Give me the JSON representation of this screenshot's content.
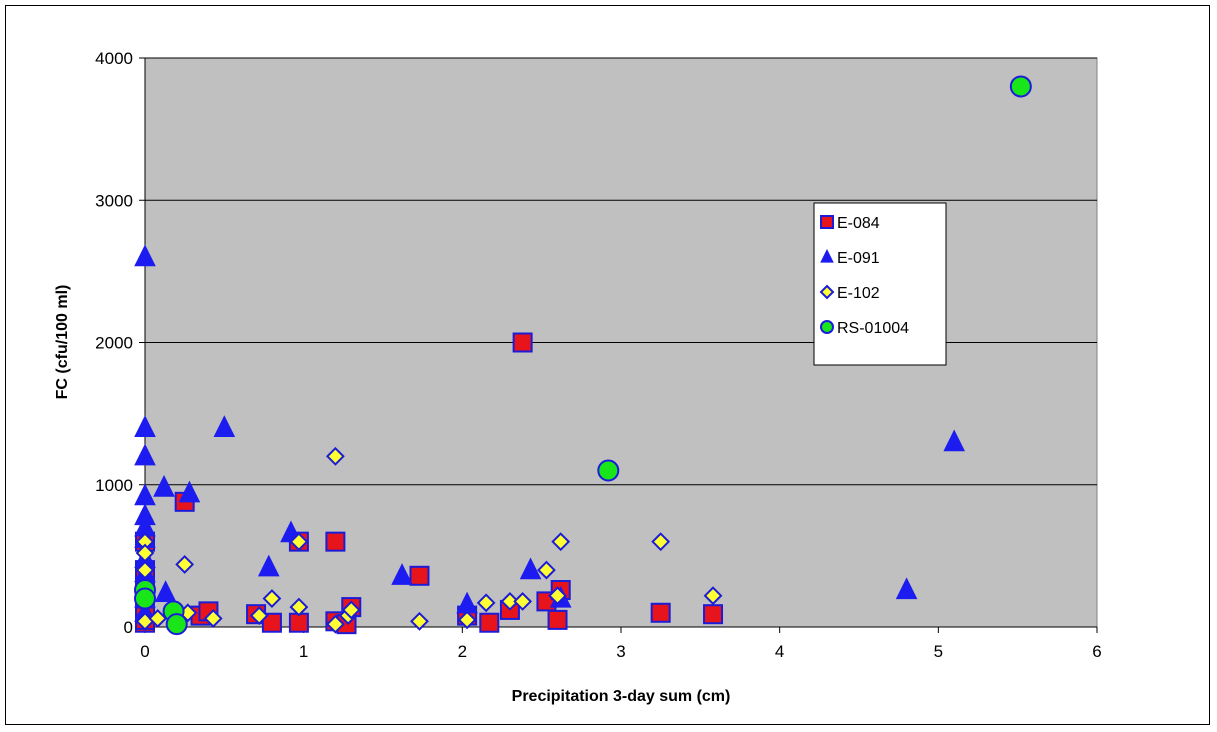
{
  "chart_data": {
    "type": "scatter",
    "title": "",
    "xlabel": "Precipitation 3-day sum (cm)",
    "ylabel": "FC (cfu/100 ml)",
    "xlim": [
      0,
      6
    ],
    "ylim": [
      0,
      4000
    ],
    "x_ticks": [
      "0",
      "1",
      "2",
      "3",
      "4",
      "5",
      "6"
    ],
    "y_ticks": [
      "0",
      "1000",
      "2000",
      "3000",
      "4000"
    ],
    "grid": "horizontal",
    "plot_background": "#c0c0c0",
    "legend_position": "right-upper",
    "series": [
      {
        "name": "E-084",
        "marker": "square",
        "color": "#e8141c",
        "stroke": "#1c1cd8",
        "points": [
          [
            0,
            30
          ],
          [
            0,
            50
          ],
          [
            0,
            100
          ],
          [
            0,
            150
          ],
          [
            0,
            200
          ],
          [
            0,
            250
          ],
          [
            0,
            300
          ],
          [
            0,
            400
          ],
          [
            0,
            600
          ],
          [
            0.25,
            880
          ],
          [
            0.35,
            80
          ],
          [
            0.4,
            110
          ],
          [
            0.7,
            90
          ],
          [
            0.8,
            30
          ],
          [
            0.97,
            600
          ],
          [
            0.97,
            30
          ],
          [
            1.2,
            600
          ],
          [
            1.2,
            40
          ],
          [
            1.27,
            20
          ],
          [
            1.3,
            140
          ],
          [
            1.73,
            360
          ],
          [
            2.03,
            80
          ],
          [
            2.17,
            30
          ],
          [
            2.3,
            120
          ],
          [
            2.38,
            2000
          ],
          [
            2.53,
            180
          ],
          [
            2.6,
            50
          ],
          [
            2.62,
            260
          ],
          [
            3.25,
            100
          ],
          [
            3.58,
            90
          ]
        ]
      },
      {
        "name": "E-091",
        "marker": "triangle",
        "color": "#1c1cf0",
        "stroke": "#1c1cf0",
        "points": [
          [
            0,
            2600
          ],
          [
            0,
            1400
          ],
          [
            0,
            1200
          ],
          [
            0,
            920
          ],
          [
            0,
            780
          ],
          [
            0,
            700
          ],
          [
            0,
            620
          ],
          [
            0,
            480
          ],
          [
            0,
            380
          ],
          [
            0,
            300
          ],
          [
            0,
            200
          ],
          [
            0,
            100
          ],
          [
            0.12,
            980
          ],
          [
            0.13,
            240
          ],
          [
            0.28,
            940
          ],
          [
            0.5,
            1400
          ],
          [
            0.78,
            420
          ],
          [
            0.92,
            660
          ],
          [
            1.62,
            360
          ],
          [
            2.03,
            160
          ],
          [
            2.43,
            400
          ],
          [
            2.62,
            200
          ],
          [
            4.8,
            260
          ],
          [
            5.1,
            1300
          ]
        ]
      },
      {
        "name": "E-102",
        "marker": "diamond",
        "color": "#ffff33",
        "stroke": "#1c1cd8",
        "points": [
          [
            0,
            600
          ],
          [
            0,
            520
          ],
          [
            0,
            400
          ],
          [
            0,
            40
          ],
          [
            0.08,
            60
          ],
          [
            0.25,
            440
          ],
          [
            0.27,
            100
          ],
          [
            0.43,
            60
          ],
          [
            0.72,
            80
          ],
          [
            0.8,
            200
          ],
          [
            0.97,
            600
          ],
          [
            0.97,
            140
          ],
          [
            1.2,
            1200
          ],
          [
            1.2,
            20
          ],
          [
            1.28,
            80
          ],
          [
            1.3,
            120
          ],
          [
            1.73,
            40
          ],
          [
            2.03,
            50
          ],
          [
            2.15,
            170
          ],
          [
            2.3,
            180
          ],
          [
            2.38,
            180
          ],
          [
            2.53,
            400
          ],
          [
            2.6,
            220
          ],
          [
            2.62,
            600
          ],
          [
            3.25,
            600
          ],
          [
            3.58,
            220
          ]
        ]
      },
      {
        "name": "RS-01004",
        "marker": "circle",
        "color": "#19e619",
        "stroke": "#1c1cd8",
        "points": [
          [
            0,
            260
          ],
          [
            0,
            200
          ],
          [
            0.18,
            110
          ],
          [
            0.2,
            20
          ],
          [
            2.92,
            1100
          ],
          [
            5.52,
            3800
          ]
        ]
      }
    ]
  }
}
